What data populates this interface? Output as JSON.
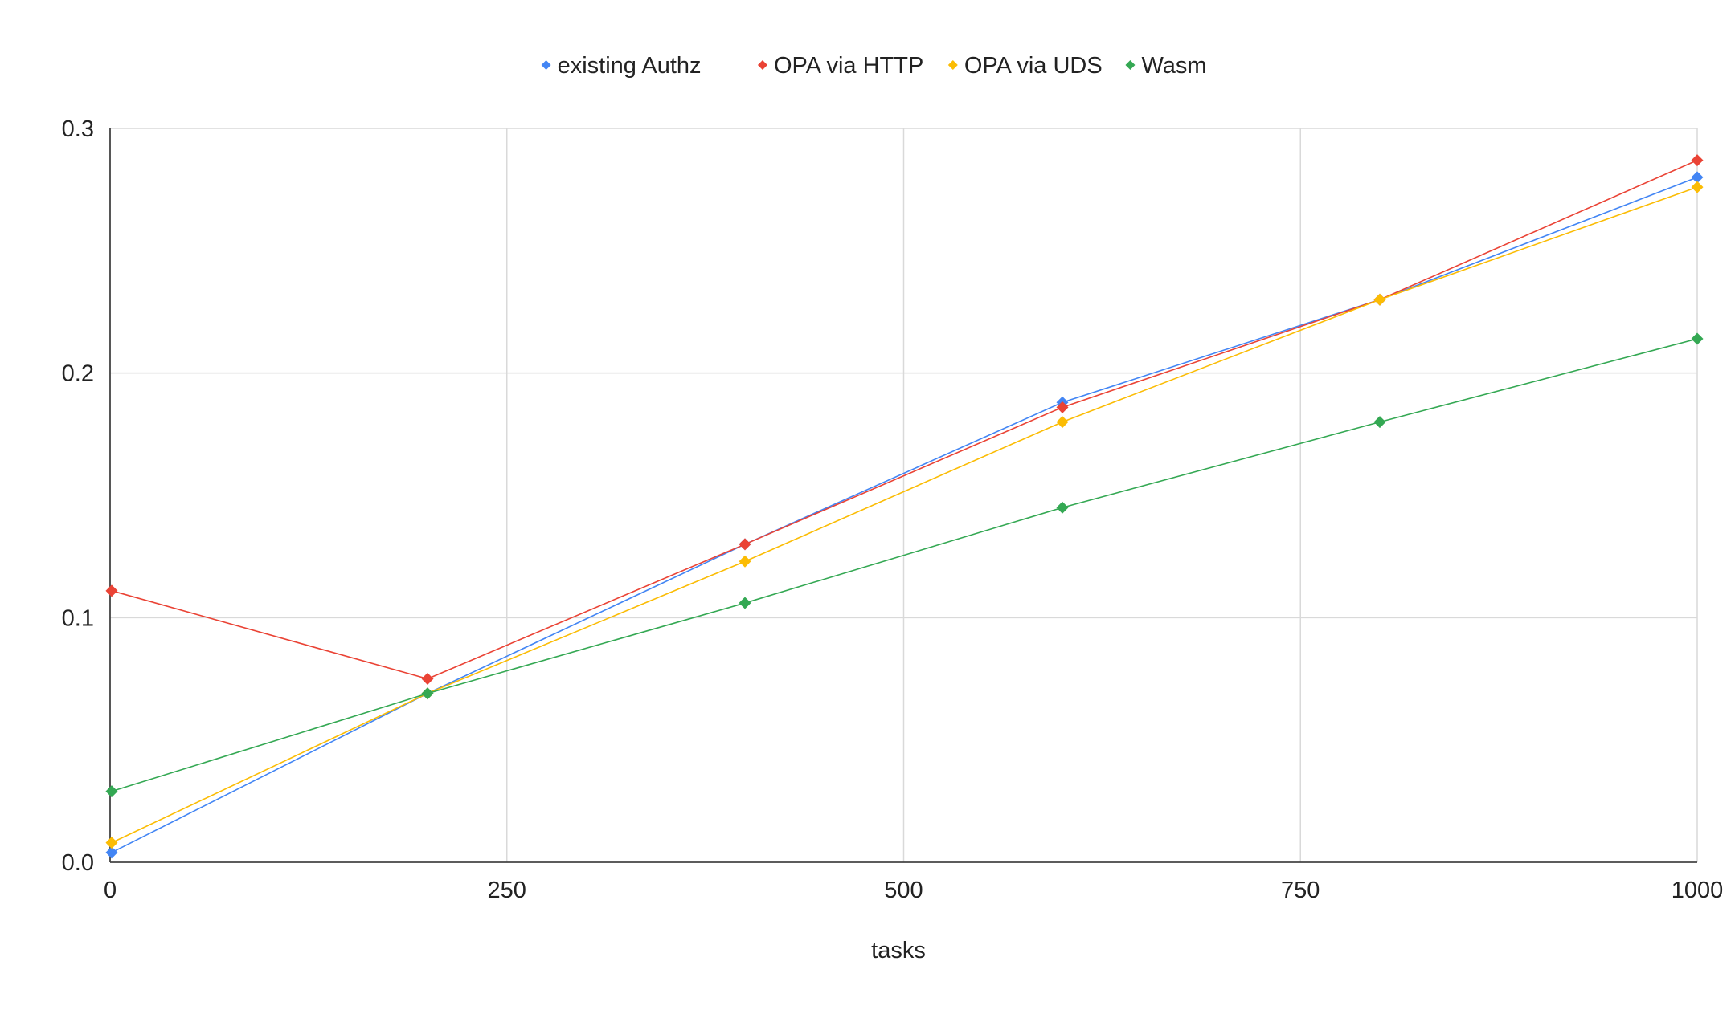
{
  "chart_data": {
    "type": "line",
    "title": "",
    "xlabel": "tasks",
    "ylabel": "",
    "xlim": [
      0,
      1000
    ],
    "ylim": [
      0,
      0.3
    ],
    "xticks": [
      0,
      250,
      500,
      750,
      1000
    ],
    "xtick_labels": [
      "0",
      "250",
      "500",
      "750",
      "1000"
    ],
    "yticks": [
      0,
      0.1,
      0.2,
      0.3
    ],
    "ytick_labels": [
      "0.0",
      "0.1",
      "0.2",
      "0.3"
    ],
    "grid": true,
    "legend_position": "top",
    "marker": "diamond",
    "x": [
      1,
      200,
      400,
      600,
      800,
      1000
    ],
    "series": [
      {
        "name": "existing Authz",
        "color": "#4285F4",
        "values": [
          0.004,
          0.069,
          0.13,
          0.188,
          0.23,
          0.28
        ]
      },
      {
        "name": "OPA via HTTP",
        "color": "#EA4335",
        "values": [
          0.111,
          0.075,
          0.13,
          0.186,
          0.23,
          0.287
        ]
      },
      {
        "name": "OPA via UDS",
        "color": "#FBBC04",
        "values": [
          0.008,
          0.069,
          0.123,
          0.18,
          0.23,
          0.276
        ]
      },
      {
        "name": "Wasm",
        "color": "#34A853",
        "values": [
          0.029,
          0.069,
          0.106,
          0.145,
          0.18,
          0.214
        ]
      }
    ]
  }
}
